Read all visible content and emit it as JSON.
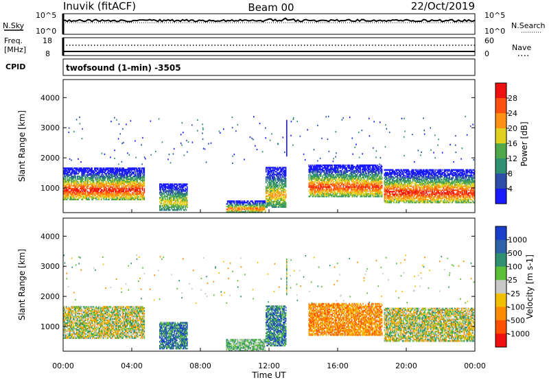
{
  "header": {
    "station": "Inuvik (fitACF)",
    "beam": "Beam 00",
    "date": "22/Oct/2019"
  },
  "top_strips": {
    "nsky_label": "N.Sky",
    "nsky_ticks": [
      "10^5",
      "10^0"
    ],
    "nsearch_label": "N.Search",
    "nsearch_ticks": [
      "10^5",
      "10^0"
    ],
    "freq_label": "Freq.",
    "freq_unit": "[MHz]",
    "freq_ticks": [
      "18",
      "8"
    ],
    "nave_label": "Nave",
    "nave_ticks": [
      "60",
      "0"
    ],
    "cpid_label": "CPID",
    "cpid_value": "twofsound (1-min) -3505"
  },
  "chart_data": [
    {
      "type": "heatmap",
      "panel": "power",
      "ylabel": "Slant Range [km]",
      "xlabel": "Time UT",
      "x_ticks": [
        "00:00",
        "04:00",
        "08:00",
        "12:00",
        "16:00",
        "20:00",
        "00:00"
      ],
      "x_range_hours": [
        0,
        24
      ],
      "y_ticks": [
        "1000",
        "2000",
        "3000",
        "4000"
      ],
      "ylim": [
        180,
        4600
      ],
      "colorbar_label": "Power [dB]",
      "colorbar_ticks": [
        "4",
        "8",
        "12",
        "16",
        "20",
        "24",
        "28"
      ],
      "colorbar_colors": [
        "#1a1aff",
        "#2e4fa8",
        "#2f8f70",
        "#50a84a",
        "#e0d020",
        "#ff9010",
        "#ff5010",
        "#ee1010"
      ],
      "colorbar_range": [
        0,
        32
      ],
      "regions": [
        {
          "t": [
            0.0,
            4.7
          ],
          "r": [
            600,
            1650
          ],
          "peak": 28
        },
        {
          "t": [
            5.6,
            7.2
          ],
          "r": [
            250,
            1150
          ],
          "peak": 18
        },
        {
          "t": [
            9.5,
            11.8
          ],
          "r": [
            180,
            550
          ],
          "peak": 24
        },
        {
          "t": [
            11.8,
            13.0
          ],
          "r": [
            350,
            1700
          ],
          "peak": 20
        },
        {
          "t": [
            14.3,
            18.6
          ],
          "r": [
            700,
            1750
          ],
          "peak": 26
        },
        {
          "t": [
            18.7,
            24.0
          ],
          "r": [
            500,
            1600
          ],
          "peak": 28
        }
      ]
    },
    {
      "type": "heatmap",
      "panel": "velocity",
      "ylabel": "Slant Range [km]",
      "xlabel": "Time UT",
      "x_ticks": [
        "00:00",
        "04:00",
        "08:00",
        "12:00",
        "16:00",
        "20:00",
        "00:00"
      ],
      "x_range_hours": [
        0,
        24
      ],
      "y_ticks": [
        "1000",
        "2000",
        "3000",
        "4000"
      ],
      "ylim": [
        180,
        4600
      ],
      "colorbar_label": "Velocity [m s-1]",
      "colorbar_ticks": [
        "1000",
        "500",
        "100",
        "25",
        "-25",
        "-100",
        "-500",
        "-1000"
      ],
      "colorbar_colors": [
        "#1a3fcc",
        "#2e62a8",
        "#2f8f70",
        "#5cbf3a",
        "#c8c8c8",
        "#f0c000",
        "#ff8c00",
        "#ff5000",
        "#ee1010"
      ],
      "regions": [
        {
          "t": [
            0.0,
            4.7
          ],
          "r": [
            600,
            1650
          ],
          "class": "mixed-green-orange"
        },
        {
          "t": [
            5.6,
            7.2
          ],
          "r": [
            250,
            1150
          ],
          "class": "green-blue"
        },
        {
          "t": [
            9.5,
            11.8
          ],
          "r": [
            180,
            550
          ],
          "class": "green"
        },
        {
          "t": [
            11.8,
            13.0
          ],
          "r": [
            350,
            1700
          ],
          "class": "blue-green"
        },
        {
          "t": [
            14.3,
            18.6
          ],
          "r": [
            700,
            1750
          ],
          "class": "orange"
        },
        {
          "t": [
            18.7,
            24.0
          ],
          "r": [
            500,
            1600
          ],
          "class": "orange-green-grey"
        }
      ]
    }
  ],
  "labels": {
    "time_axis": "Time UT",
    "superscript": "-1"
  }
}
